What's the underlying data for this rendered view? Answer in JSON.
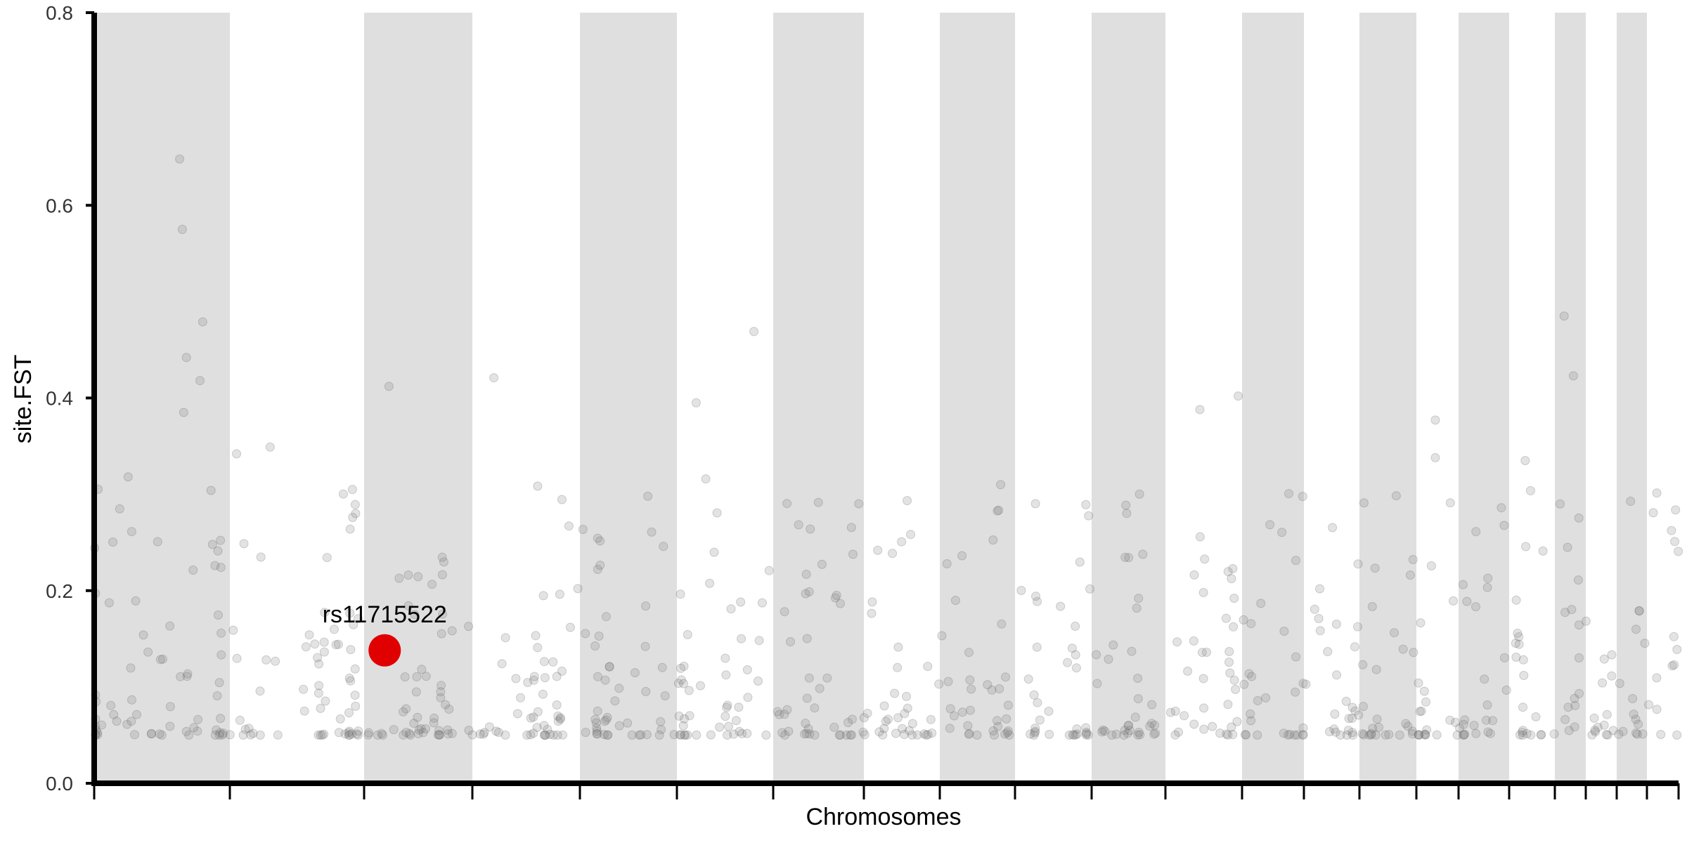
{
  "chart_data": {
    "type": "scatter",
    "title": "",
    "xlabel": "Chromosomes",
    "ylabel": "site.FST",
    "ylim": [
      0,
      0.8
    ],
    "y_ticks": [
      "0.0",
      "0.2",
      "0.4",
      "0.6",
      "0.8"
    ],
    "x_tick_labels": [],
    "grid": false,
    "legend": "none",
    "colors": {
      "band": "#dfdfdf",
      "point": "#808080",
      "highlight": "#e00000",
      "axis": "#000000"
    },
    "chromosome_bands": "alternating grey / white, 22 chromosomes",
    "highlight": {
      "label": "rs11715522",
      "chromosome": 3,
      "position": 0.19,
      "y": 0.138
    },
    "outliers": [
      {
        "chromosome": 1,
        "position": 0.63,
        "y": 0.648
      },
      {
        "chromosome": 1,
        "position": 0.65,
        "y": 0.575
      },
      {
        "chromosome": 1,
        "position": 0.8,
        "y": 0.479
      },
      {
        "chromosome": 1,
        "position": 0.68,
        "y": 0.442
      },
      {
        "chromosome": 1,
        "position": 0.78,
        "y": 0.418
      },
      {
        "chromosome": 1,
        "position": 0.66,
        "y": 0.385
      },
      {
        "chromosome": 1,
        "position": 0.25,
        "y": 0.318
      },
      {
        "chromosome": 2,
        "position": 0.3,
        "y": 0.349
      },
      {
        "chromosome": 2,
        "position": 0.05,
        "y": 0.342
      },
      {
        "chromosome": 3,
        "position": 0.23,
        "y": 0.412
      },
      {
        "chromosome": 4,
        "position": 0.2,
        "y": 0.421
      },
      {
        "chromosome": 5,
        "position": 0.7,
        "y": 0.298
      },
      {
        "chromosome": 6,
        "position": 0.2,
        "y": 0.395
      },
      {
        "chromosome": 6,
        "position": 0.8,
        "y": 0.469
      },
      {
        "chromosome": 6,
        "position": 0.3,
        "y": 0.316
      },
      {
        "chromosome": 12,
        "position": 0.45,
        "y": 0.388
      },
      {
        "chromosome": 12,
        "position": 0.95,
        "y": 0.402
      },
      {
        "chromosome": 16,
        "position": 0.45,
        "y": 0.377
      },
      {
        "chromosome": 16,
        "position": 0.45,
        "y": 0.338
      },
      {
        "chromosome": 18,
        "position": 0.35,
        "y": 0.335
      },
      {
        "chromosome": 19,
        "position": 0.3,
        "y": 0.485
      },
      {
        "chromosome": 19,
        "position": 0.6,
        "y": 0.423
      }
    ]
  }
}
